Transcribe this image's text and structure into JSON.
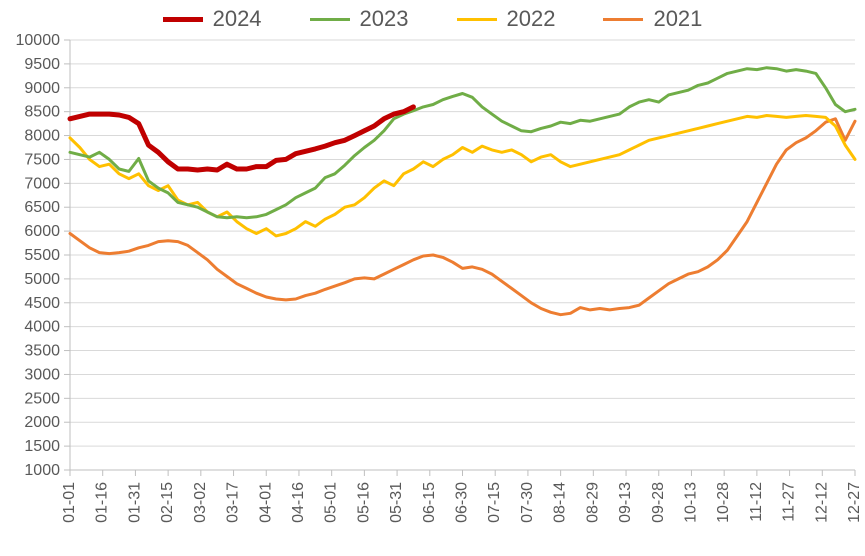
{
  "chart": {
    "type": "line",
    "background_color": "#ffffff",
    "grid_color": "#d9d9d9",
    "axis_line_color": "#bfbfbf",
    "tick_color": "#bfbfbf",
    "tick_font_color": "#595959",
    "tick_font_size_pt": 12,
    "legend_font_size_pt": 16,
    "legend_font_color": "#595959",
    "y_axis": {
      "min": 1000,
      "max": 10000,
      "tick_step": 500
    },
    "x_axis": {
      "labels": [
        "01-01",
        "01-16",
        "01-31",
        "02-15",
        "03-02",
        "03-17",
        "04-01",
        "04-16",
        "05-01",
        "05-16",
        "05-31",
        "06-15",
        "06-30",
        "07-15",
        "07-30",
        "08-14",
        "08-29",
        "09-13",
        "09-28",
        "10-13",
        "10-28",
        "11-12",
        "11-27",
        "12-12",
        "12-27"
      ]
    },
    "series": [
      {
        "name": "2024",
        "color": "#c00000",
        "line_width": 5,
        "values": [
          8350,
          8400,
          8450,
          8450,
          8450,
          8430,
          8380,
          8250,
          7800,
          7650,
          7450,
          7300,
          7300,
          7280,
          7300,
          7280,
          7400,
          7300,
          7300,
          7350,
          7350,
          7480,
          7500,
          7620,
          7670,
          7720,
          7780,
          7850,
          7900,
          8000,
          8100,
          8200,
          8350,
          8450,
          8500,
          8600
        ]
      },
      {
        "name": "2023",
        "color": "#70ad47",
        "line_width": 3,
        "values": [
          7650,
          7600,
          7550,
          7650,
          7500,
          7300,
          7250,
          7520,
          7050,
          6900,
          6800,
          6600,
          6550,
          6500,
          6400,
          6300,
          6280,
          6300,
          6280,
          6300,
          6350,
          6450,
          6550,
          6700,
          6800,
          6900,
          7120,
          7200,
          7380,
          7580,
          7750,
          7900,
          8100,
          8350,
          8450,
          8520,
          8600,
          8650,
          8750,
          8820,
          8880,
          8800,
          8600,
          8450,
          8300,
          8200,
          8100,
          8080,
          8150,
          8200,
          8280,
          8250,
          8320,
          8300,
          8350,
          8400,
          8450,
          8600,
          8700,
          8750,
          8700,
          8850,
          8900,
          8950,
          9050,
          9100,
          9200,
          9300,
          9350,
          9400,
          9380,
          9420,
          9400,
          9350,
          9380,
          9350,
          9300,
          9000,
          8650,
          8500,
          8550
        ]
      },
      {
        "name": "2022",
        "color": "#ffc000",
        "line_width": 3,
        "values": [
          7950,
          7750,
          7500,
          7350,
          7400,
          7200,
          7100,
          7200,
          6950,
          6850,
          6950,
          6650,
          6550,
          6600,
          6400,
          6300,
          6400,
          6200,
          6050,
          5950,
          6050,
          5900,
          5950,
          6050,
          6200,
          6100,
          6250,
          6350,
          6500,
          6550,
          6700,
          6900,
          7050,
          6950,
          7200,
          7300,
          7450,
          7350,
          7500,
          7600,
          7750,
          7650,
          7780,
          7700,
          7650,
          7700,
          7600,
          7450,
          7550,
          7600,
          7450,
          7350,
          7400,
          7450,
          7500,
          7550,
          7600,
          7700,
          7800,
          7900,
          7950,
          8000,
          8050,
          8100,
          8150,
          8200,
          8250,
          8300,
          8350,
          8400,
          8380,
          8420,
          8400,
          8380,
          8400,
          8420,
          8400,
          8380,
          8200,
          7800,
          7500
        ]
      },
      {
        "name": "2021",
        "color": "#ed7d31",
        "line_width": 3,
        "values": [
          5950,
          5800,
          5650,
          5550,
          5530,
          5550,
          5580,
          5650,
          5700,
          5780,
          5800,
          5780,
          5700,
          5550,
          5400,
          5200,
          5050,
          4900,
          4800,
          4700,
          4620,
          4580,
          4560,
          4580,
          4650,
          4700,
          4780,
          4850,
          4920,
          5000,
          5020,
          5000,
          5100,
          5200,
          5300,
          5400,
          5480,
          5500,
          5450,
          5350,
          5220,
          5250,
          5200,
          5100,
          4950,
          4800,
          4650,
          4500,
          4380,
          4300,
          4250,
          4280,
          4400,
          4350,
          4380,
          4350,
          4380,
          4400,
          4450,
          4600,
          4750,
          4900,
          5000,
          5100,
          5150,
          5250,
          5400,
          5600,
          5900,
          6200,
          6600,
          7000,
          7400,
          7700,
          7850,
          7950,
          8100,
          8280,
          8350,
          7900,
          8300
        ]
      }
    ]
  }
}
